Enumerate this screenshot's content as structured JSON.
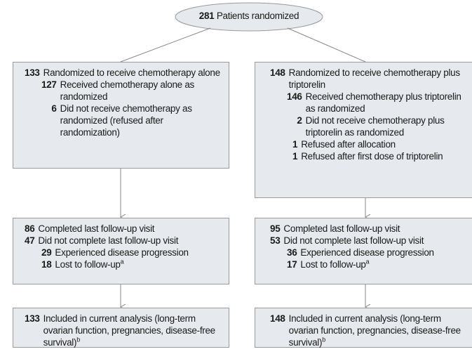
{
  "top": {
    "number": "281",
    "text": "Patients randomized"
  },
  "arms": [
    {
      "allocation": [
        {
          "number": "133",
          "text": "Randomized to receive chemotherapy alone",
          "items": [
            {
              "number": "127",
              "text": "Received chemotherapy alone as randomized"
            },
            {
              "number": "6",
              "text": "Did not receive chemotherapy as randomized (refused after randomization)"
            }
          ]
        }
      ],
      "followup": [
        {
          "number": "86",
          "text": "Completed last follow-up visit"
        },
        {
          "number": "47",
          "text": "Did not complete last follow-up visit",
          "items": [
            {
              "number": "29",
              "text": "Experienced disease progression"
            },
            {
              "number": "18",
              "text": "Lost to follow-up",
              "note": "a"
            }
          ]
        }
      ],
      "analysis": [
        {
          "number": "133",
          "text": "Included in current analysis (long-term ovarian function, pregnancies, disease-free survival)",
          "note": "b"
        }
      ]
    },
    {
      "allocation": [
        {
          "number": "148",
          "text": "Randomized to receive chemotherapy plus triptorelin",
          "items": [
            {
              "number": "146",
              "text": "Received chemotherapy plus triptorelin as randomized"
            },
            {
              "number": "2",
              "text": "Did not receive chemotherapy plus triptorelin as randomized",
              "items": [
                {
                  "number": "1",
                  "text": "Refused after allocation"
                },
                {
                  "number": "1",
                  "text": "Refused after first dose of triptorelin"
                }
              ]
            }
          ]
        }
      ],
      "followup": [
        {
          "number": "95",
          "text": "Completed last follow-up visit"
        },
        {
          "number": "53",
          "text": "Did not complete last follow-up visit",
          "items": [
            {
              "number": "36",
              "text": "Experienced disease progression"
            },
            {
              "number": "17",
              "text": "Lost to follow-up",
              "note": "a"
            }
          ]
        }
      ],
      "analysis": [
        {
          "number": "148",
          "text": "Included in current analysis (long-term ovarian function, pregnancies, disease-free survival)",
          "note": "b"
        }
      ]
    }
  ]
}
